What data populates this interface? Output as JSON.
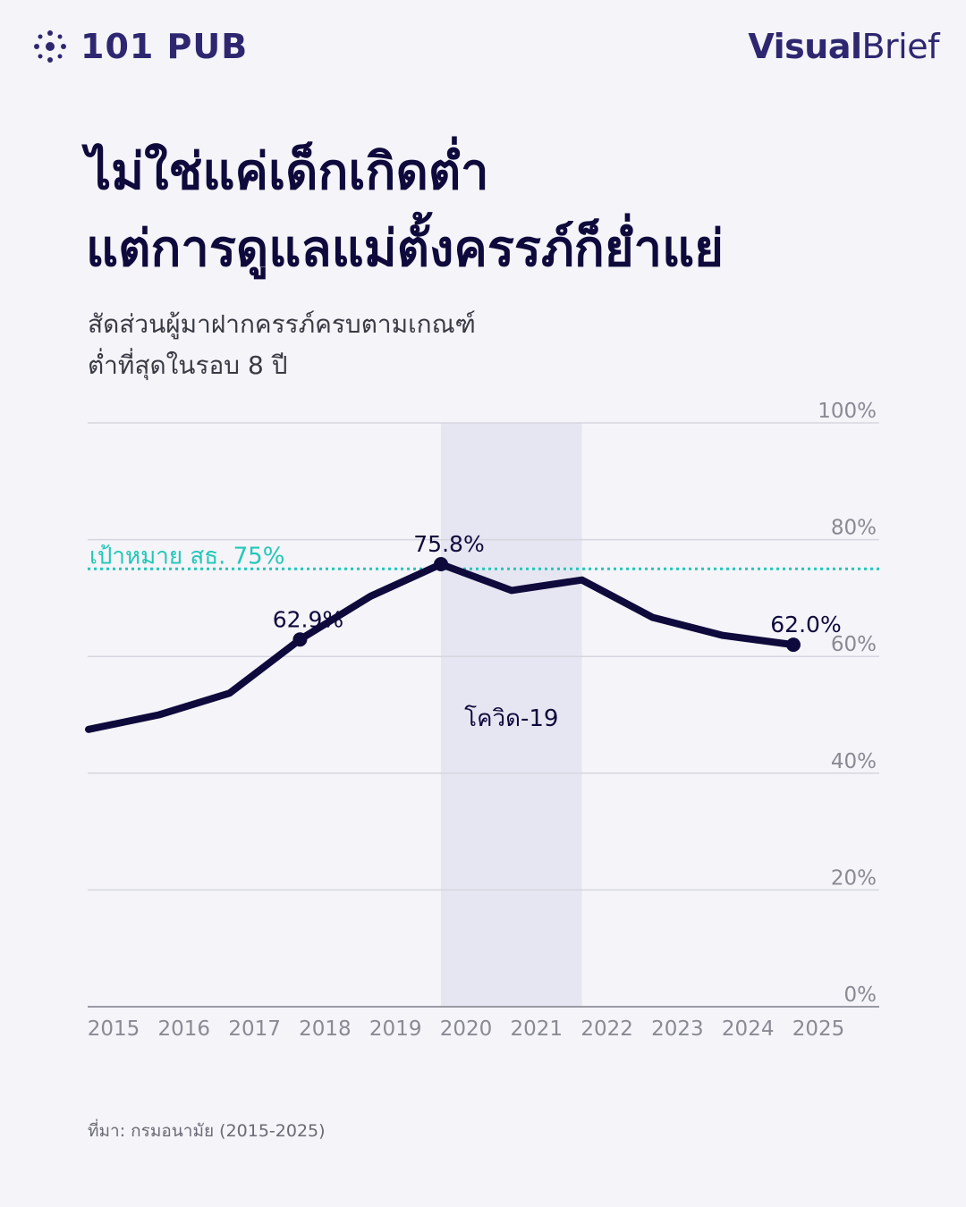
{
  "brand": {
    "logo_text": "101 PUB",
    "right_logo_bold": "Visual",
    "right_logo_light": "Brief"
  },
  "title": {
    "line1": "ไม่ใช่แค่เด็กเกิดต่ำ",
    "line2": "แต่การดูแลแม่ตั้งครรภ์ก็ย่ำแย่"
  },
  "subtitle": {
    "line1": "สัดส่วนผู้มาฝากครรภ์ครบตามเกณฑ์",
    "line2": "ต่ำที่สุดในรอบ 8 ปี"
  },
  "source": "ที่มา: กรมอนามัย (2015-2025)",
  "colors": {
    "line": "#0f0a3c",
    "target": "#22c7b8",
    "shade": "#e6e6f2",
    "grid": "#d6d6de",
    "tick": "#8a8a94"
  },
  "chart_data": {
    "type": "line",
    "categories": [
      "2015",
      "2016",
      "2017",
      "2018",
      "2019",
      "2020",
      "2021",
      "2022",
      "2023",
      "2024",
      "2025"
    ],
    "ylim": [
      0,
      100
    ],
    "yticks": [
      "0%",
      "20%",
      "40%",
      "60%",
      "80%",
      "100%"
    ],
    "series": [
      {
        "values": [
          47.5,
          50,
          53.7,
          62.9,
          70.3,
          75.8,
          71.3,
          73.1,
          66.7,
          63.6,
          62.0
        ]
      }
    ],
    "data_labels": [
      {
        "index": 3,
        "text": "62.9%"
      },
      {
        "index": 5,
        "text": "75.8%"
      },
      {
        "index": 10,
        "text": "62.0%"
      }
    ],
    "target": {
      "value": 75,
      "label": "เป้าหมาย สธ. 75%"
    },
    "shaded_region": {
      "from_index": 5,
      "to_index": 7,
      "label": "โควิด-19"
    },
    "grid": true
  }
}
